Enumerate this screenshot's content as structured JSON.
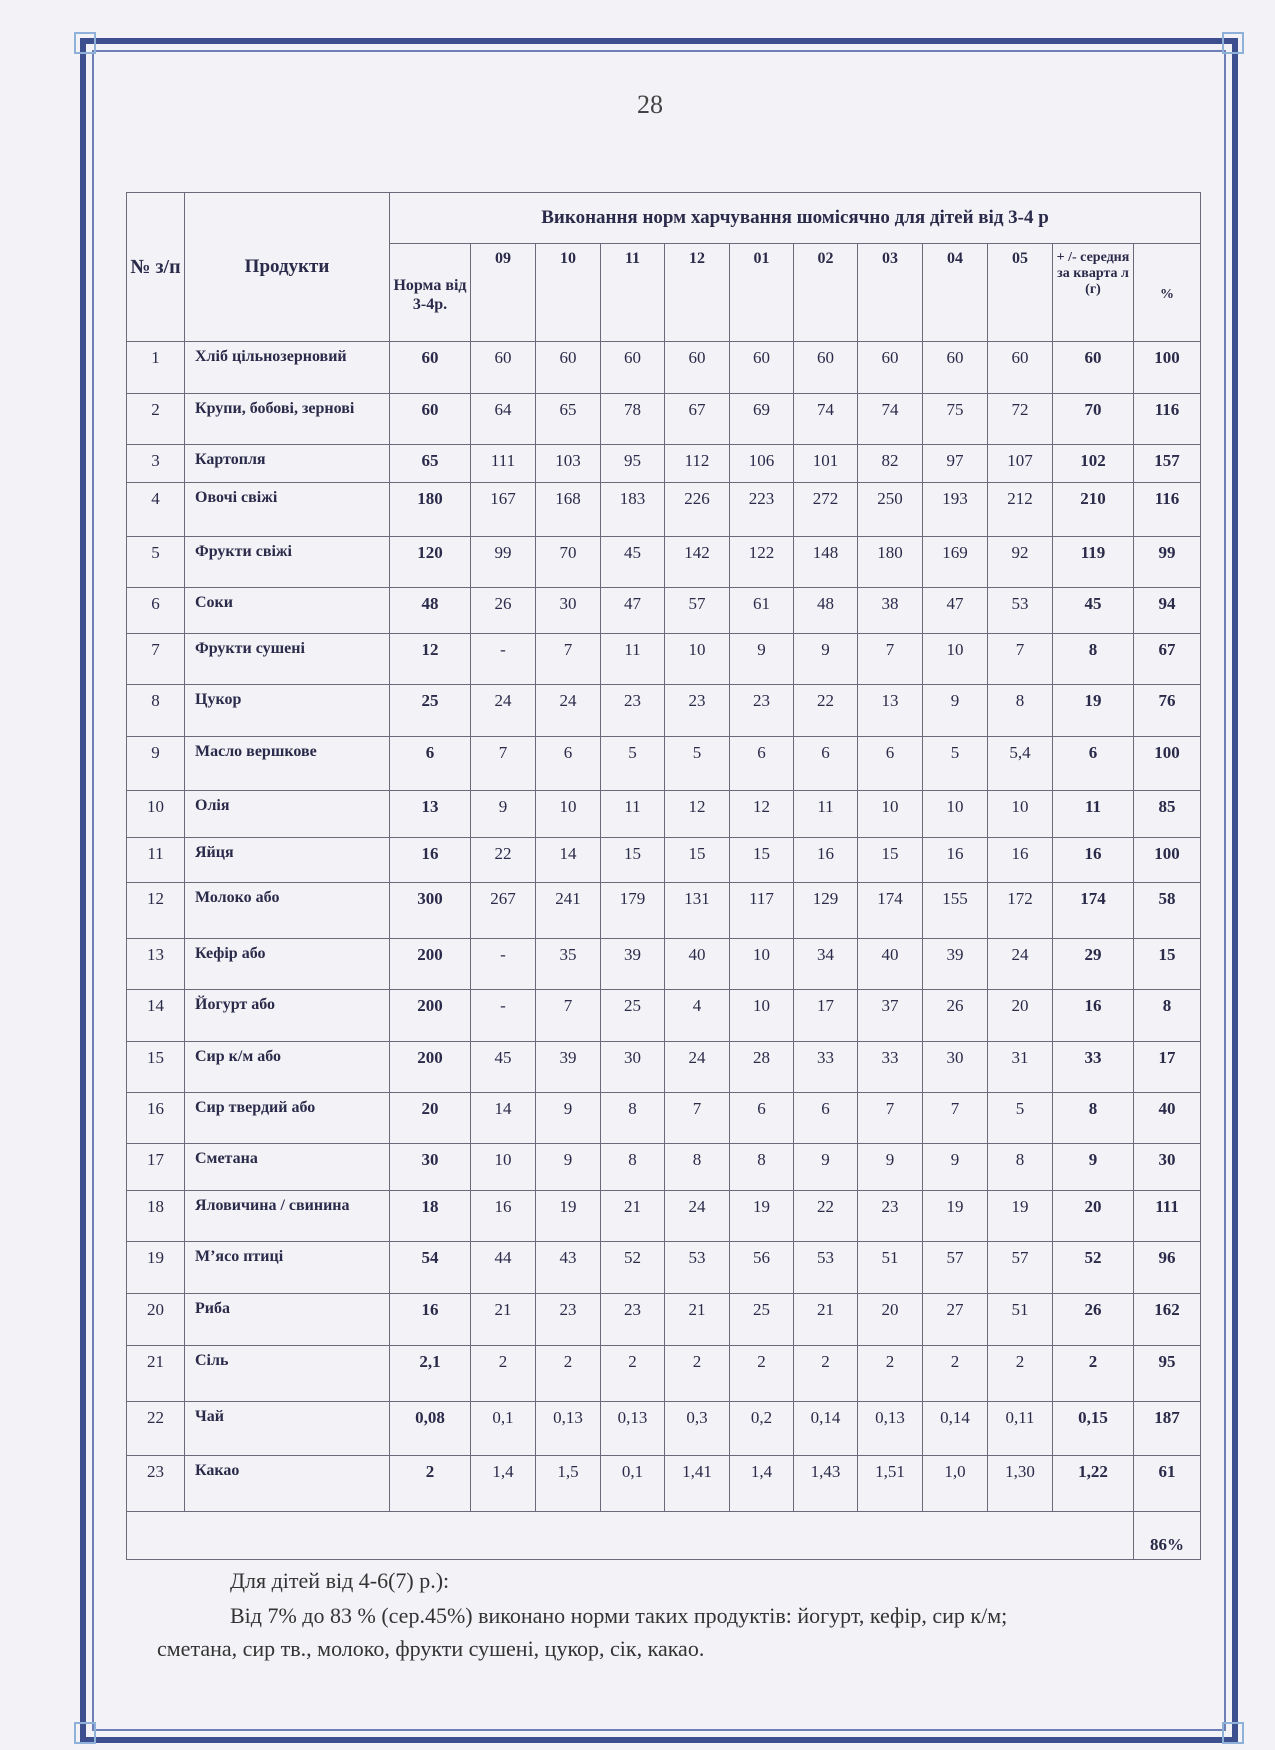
{
  "page_number": "28",
  "table": {
    "header": {
      "num": "№ з/п",
      "product": "Продукти",
      "title": "Виконання норм харчування шомісячно для дітей від 3-4 р",
      "norm": "Норма від 3-4р.",
      "months": [
        "09",
        "10",
        "11",
        "12",
        "01",
        "02",
        "03",
        "04",
        "05"
      ],
      "avg": "+ /- середня за кварта л (г)",
      "pct": "%"
    },
    "rows": [
      {
        "n": "1",
        "product": "Хліб цільнозерновий",
        "norm": "60",
        "m": [
          "60",
          "60",
          "60",
          "60",
          "60",
          "60",
          "60",
          "60",
          "60"
        ],
        "avg": "60",
        "pct": "100"
      },
      {
        "n": "2",
        "product": "Крупи, бобові, зернові",
        "norm": "60",
        "m": [
          "64",
          "65",
          "78",
          "67",
          "69",
          "74",
          "74",
          "75",
          "72"
        ],
        "avg": "70",
        "pct": "116"
      },
      {
        "n": "3",
        "product": "Картопля",
        "norm": "65",
        "m": [
          "111",
          "103",
          "95",
          "112",
          "106",
          "101",
          "82",
          "97",
          "107"
        ],
        "avg": "102",
        "pct": "157"
      },
      {
        "n": "4",
        "product": "Овочі свіжі",
        "norm": "180",
        "m": [
          "167",
          "168",
          "183",
          "226",
          "223",
          "272",
          "250",
          "193",
          "212"
        ],
        "avg": "210",
        "pct": "116"
      },
      {
        "n": "5",
        "product": "Фрукти свіжі",
        "norm": "120",
        "m": [
          "99",
          "70",
          "45",
          "142",
          "122",
          "148",
          "180",
          "169",
          "92"
        ],
        "avg": "119",
        "pct": "99"
      },
      {
        "n": "6",
        "product": "Соки",
        "norm": "48",
        "m": [
          "26",
          "30",
          "47",
          "57",
          "61",
          "48",
          "38",
          "47",
          "53"
        ],
        "avg": "45",
        "pct": "94"
      },
      {
        "n": "7",
        "product": "Фрукти сушені",
        "norm": "12",
        "m": [
          "-",
          "7",
          "11",
          "10",
          "9",
          "9",
          "7",
          "10",
          "7"
        ],
        "avg": "8",
        "pct": "67"
      },
      {
        "n": "8",
        "product": "Цукор",
        "norm": "25",
        "m": [
          "24",
          "24",
          "23",
          "23",
          "23",
          "22",
          "13",
          "9",
          "8"
        ],
        "avg": "19",
        "pct": "76"
      },
      {
        "n": "9",
        "product": "Масло вершкове",
        "norm": "6",
        "m": [
          "7",
          "6",
          "5",
          "5",
          "6",
          "6",
          "6",
          "5",
          "5,4"
        ],
        "avg": "6",
        "pct": "100"
      },
      {
        "n": "10",
        "product": "Олія",
        "norm": "13",
        "m": [
          "9",
          "10",
          "11",
          "12",
          "12",
          "11",
          "10",
          "10",
          "10"
        ],
        "avg": "11",
        "pct": "85"
      },
      {
        "n": "11",
        "product": "Яйця",
        "norm": "16",
        "m": [
          "22",
          "14",
          "15",
          "15",
          "15",
          "16",
          "15",
          "16",
          "16"
        ],
        "avg": "16",
        "pct": "100"
      },
      {
        "n": "12",
        "product": "Молоко або",
        "norm": "300",
        "m": [
          "267",
          "241",
          "179",
          "131",
          "117",
          "129",
          "174",
          "155",
          "172"
        ],
        "avg": "174",
        "pct": "58"
      },
      {
        "n": "13",
        "product": "Кефір або",
        "norm": "200",
        "m": [
          "-",
          "35",
          "39",
          "40",
          "10",
          "34",
          "40",
          "39",
          "24"
        ],
        "avg": "29",
        "pct": "15"
      },
      {
        "n": "14",
        "product": "Йогурт або",
        "norm": "200",
        "m": [
          "-",
          "7",
          "25",
          "4",
          "10",
          "17",
          "37",
          "26",
          "20"
        ],
        "avg": "16",
        "pct": "8"
      },
      {
        "n": "15",
        "product": "Сир к/м або",
        "norm": "200",
        "m": [
          "45",
          "39",
          "30",
          "24",
          "28",
          "33",
          "33",
          "30",
          "31"
        ],
        "avg": "33",
        "pct": "17"
      },
      {
        "n": "16",
        "product": "Сир твердий або",
        "norm": "20",
        "m": [
          "14",
          "9",
          "8",
          "7",
          "6",
          "6",
          "7",
          "7",
          "5"
        ],
        "avg": "8",
        "pct": "40"
      },
      {
        "n": "17",
        "product": "Сметана",
        "norm": "30",
        "m": [
          "10",
          "9",
          "8",
          "8",
          "8",
          "9",
          "9",
          "9",
          "8"
        ],
        "avg": "9",
        "pct": "30"
      },
      {
        "n": "18",
        "product": "Яловичина / свинина",
        "norm": "18",
        "m": [
          "16",
          "19",
          "21",
          "24",
          "19",
          "22",
          "23",
          "19",
          "19"
        ],
        "avg": "20",
        "pct": "111"
      },
      {
        "n": "19",
        "product": "М’ясо птиці",
        "norm": "54",
        "m": [
          "44",
          "43",
          "52",
          "53",
          "56",
          "53",
          "51",
          "57",
          "57"
        ],
        "avg": "52",
        "pct": "96"
      },
      {
        "n": "20",
        "product": "Риба",
        "norm": "16",
        "m": [
          "21",
          "23",
          "23",
          "21",
          "25",
          "21",
          "20",
          "27",
          "51"
        ],
        "avg": "26",
        "pct": "162"
      },
      {
        "n": "21",
        "product": "Сіль",
        "norm": "2,1",
        "m": [
          "2",
          "2",
          "2",
          "2",
          "2",
          "2",
          "2",
          "2",
          "2"
        ],
        "avg": "2",
        "pct": "95"
      },
      {
        "n": "22",
        "product": "Чай",
        "norm": "0,08",
        "m": [
          "0,1",
          "0,13",
          "0,13",
          "0,3",
          "0,2",
          "0,14",
          "0,13",
          "0,14",
          "0,11"
        ],
        "avg": "0,15",
        "pct": "187"
      },
      {
        "n": "23",
        "product": "Какао",
        "norm": "2",
        "m": [
          "1,4",
          "1,5",
          "0,1",
          "1,41",
          "1,4",
          "1,43",
          "1,51",
          "1,0",
          "1,30"
        ],
        "avg": "1,22",
        "pct": "61"
      }
    ],
    "total_pct": "86%"
  },
  "text": {
    "line1": "Для дітей від 4-6(7) р.):",
    "line2": "Від 7% до 83 % (сер.45%) виконано норми таких продуктів: йогурт, кефір, сир к/м;",
    "line3": "сметана, сир тв., молоко, фрукти сушені, цукор, сік, какао."
  }
}
